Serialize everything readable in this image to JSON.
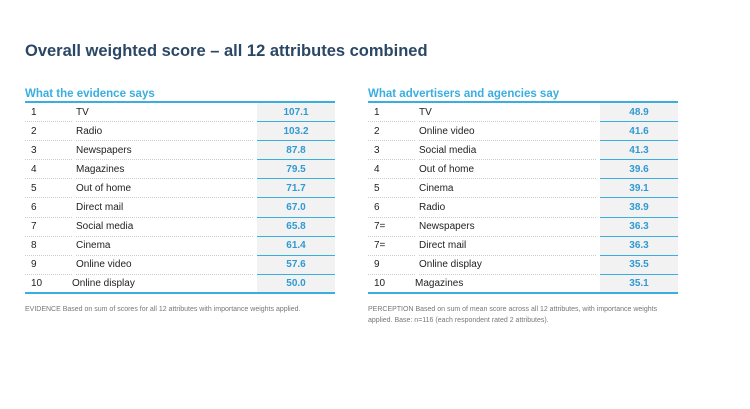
{
  "title": "Overall weighted score – all 12 attributes combined",
  "evidence": {
    "heading": "What the evidence says",
    "rows": [
      {
        "rank": "1",
        "name": "TV",
        "value": "107.1"
      },
      {
        "rank": "2",
        "name": "Radio",
        "value": "103.2"
      },
      {
        "rank": "3",
        "name": "Newspapers",
        "value": "87.8"
      },
      {
        "rank": "4",
        "name": "Magazines",
        "value": "79.5"
      },
      {
        "rank": "5",
        "name": "Out of home",
        "value": "71.7"
      },
      {
        "rank": "6",
        "name": "Direct mail",
        "value": "67.0"
      },
      {
        "rank": "7",
        "name": "Social media",
        "value": "65.8"
      },
      {
        "rank": "8",
        "name": "Cinema",
        "value": "61.4"
      },
      {
        "rank": "9",
        "name": "Online video",
        "value": "57.6"
      },
      {
        "rank": "10",
        "name": "Online display",
        "value": "50.0"
      }
    ],
    "note": "EVIDENCE Based on sum of scores for all 12 attributes with importance weights applied."
  },
  "perception": {
    "heading": "What advertisers and agencies say",
    "rows": [
      {
        "rank": "1",
        "name": "TV",
        "value": "48.9"
      },
      {
        "rank": "2",
        "name": "Online video",
        "value": "41.6"
      },
      {
        "rank": "3",
        "name": "Social media",
        "value": "41.3"
      },
      {
        "rank": "4",
        "name": "Out of home",
        "value": "39.6"
      },
      {
        "rank": "5",
        "name": "Cinema",
        "value": "39.1"
      },
      {
        "rank": "6",
        "name": "Radio",
        "value": "38.9"
      },
      {
        "rank": "7=",
        "name": "Newspapers",
        "value": "36.3"
      },
      {
        "rank": "7=",
        "name": "Direct mail",
        "value": "36.3"
      },
      {
        "rank": "9",
        "name": "Online display",
        "value": "35.5"
      },
      {
        "rank": "10",
        "name": "Magazines",
        "value": "35.1"
      }
    ],
    "note": "PERCEPTION Based on sum of mean score across all 12 attributes, with importance weights applied.  Base: n=116 (each respondent rated 2 attributes)."
  }
}
